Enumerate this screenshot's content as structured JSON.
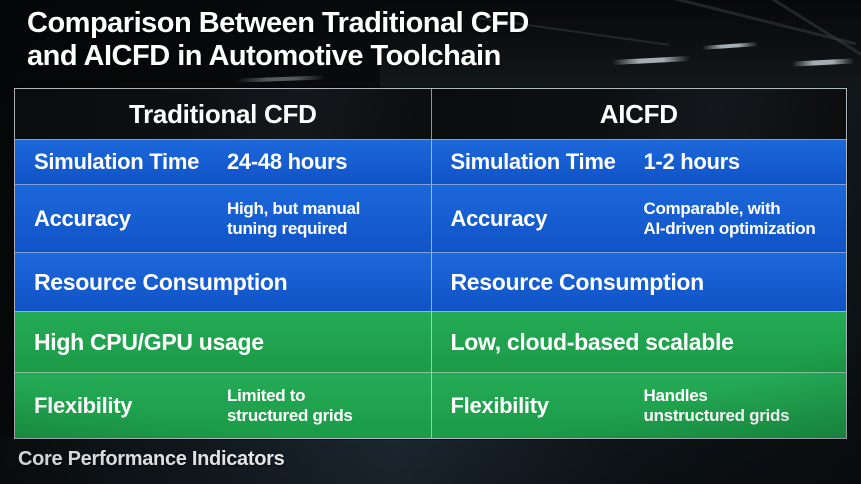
{
  "title": {
    "full": "Comparison Between Traditional CFD and AICFD in Automotive Toolchain",
    "line1": "Comparison Between Traditional CFD",
    "line2": "and AICFD in Automotive Toolchain"
  },
  "footer": "Core Performance Indicators",
  "colors": {
    "row_blue": "#1257c9",
    "row_green": "#1ea04c",
    "header_bg": "#0c0f11",
    "background": "#0a0d0f",
    "text": "#ffffff"
  },
  "table": {
    "headers": {
      "left": "Traditional CFD",
      "right": "AICFD"
    },
    "rows": [
      {
        "left": {
          "label": "Simulation Time",
          "value": "24-48 hours"
        },
        "right": {
          "label": "Simulation Time",
          "value": "1-2 hours"
        }
      },
      {
        "left": {
          "label": "Accuracy",
          "value_line1": "High, but manual",
          "value_line2": "tuning required"
        },
        "right": {
          "label": "Accuracy",
          "value_line1": "Comparable, with",
          "value_line2": "AI-driven optimization"
        }
      },
      {
        "left": {
          "label": "Resource Consumption"
        },
        "right": {
          "label": "Resource Consumption"
        }
      },
      {
        "left": {
          "label": "High CPU/GPU usage"
        },
        "right": {
          "label": "Low, cloud-based scalable"
        }
      },
      {
        "left": {
          "label": "Flexibility",
          "value_line1": "Limited to",
          "value_line2": "structured grids"
        },
        "right": {
          "label": "Flexibility",
          "value_line1": "Handles",
          "value_line2": "unstructured grids"
        }
      }
    ]
  },
  "chart_data": {
    "type": "table",
    "title": "Comparison Between Traditional CFD and AICFD in Automotive Toolchain",
    "columns": [
      "Traditional CFD",
      "AICFD"
    ],
    "rows": [
      {
        "indicator": "Simulation Time",
        "traditional_cfd": "24-48 hours",
        "aicfd": "1-2 hours"
      },
      {
        "indicator": "Accuracy",
        "traditional_cfd": "High, but manual tuning required",
        "aicfd": "Comparable, with AI-driven optimization"
      },
      {
        "indicator": "Resource Consumption",
        "traditional_cfd": "High CPU/GPU usage",
        "aicfd": "Low, cloud-based scalable"
      },
      {
        "indicator": "Flexibility",
        "traditional_cfd": "Limited to structured grids",
        "aicfd": "Handles unstructured grids"
      }
    ],
    "footnote": "Core Performance Indicators"
  }
}
